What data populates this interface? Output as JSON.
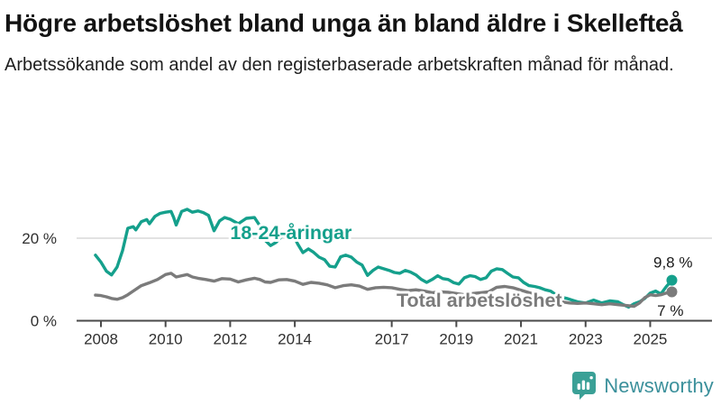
{
  "header": {
    "title": "Högre arbetslöshet bland unga än bland äldre i Skellefteå",
    "subtitle": "Arbetssökande som andel av den registerbaserade arbetskraften månad för månad."
  },
  "footer": {
    "brand": "Newsworthy",
    "brand_color": "#3b909b",
    "icon_color": "#3aa096"
  },
  "chart_data": {
    "type": "line",
    "title": "Högre arbetslöshet bland unga än bland äldre i Skellefteå",
    "subtitle": "Arbetssökande som andel av den registerbaserade arbetskraften månad för månad.",
    "unit": "%",
    "grid": "horizontal-only",
    "xlim": [
      2007.6,
      2026.3
    ],
    "ylim": [
      0,
      30
    ],
    "x_ticks": [
      {
        "year": 2008,
        "label": "2008"
      },
      {
        "year": 2010,
        "label": "2010"
      },
      {
        "year": 2012,
        "label": "2012"
      },
      {
        "year": 2014,
        "label": "2014"
      },
      {
        "year": 2017,
        "label": "2017"
      },
      {
        "year": 2019,
        "label": "2019"
      },
      {
        "year": 2021,
        "label": "2021"
      },
      {
        "year": 2023,
        "label": "2023"
      },
      {
        "year": 2025,
        "label": "2025"
      }
    ],
    "y_ticks": [
      {
        "value": 0,
        "label": "0 %"
      },
      {
        "value": 20,
        "label": "20 %"
      }
    ],
    "series": [
      {
        "name": "18-24-åringar",
        "color": "#15a08c",
        "end_label": "9,8 %",
        "end_value": 9.8,
        "label_pos": [
          2012.0,
          19.8
        ],
        "points": [
          [
            2007.83,
            15.9
          ],
          [
            2008.0,
            14.2
          ],
          [
            2008.17,
            12.0
          ],
          [
            2008.33,
            11.1
          ],
          [
            2008.5,
            13.0
          ],
          [
            2008.67,
            17.0
          ],
          [
            2008.83,
            22.4
          ],
          [
            2009.0,
            22.8
          ],
          [
            2009.08,
            22.0
          ],
          [
            2009.25,
            24.0
          ],
          [
            2009.42,
            24.5
          ],
          [
            2009.5,
            23.5
          ],
          [
            2009.67,
            25.3
          ],
          [
            2009.83,
            26.0
          ],
          [
            2010.0,
            26.3
          ],
          [
            2010.17,
            26.5
          ],
          [
            2010.25,
            25.0
          ],
          [
            2010.33,
            23.2
          ],
          [
            2010.5,
            26.5
          ],
          [
            2010.67,
            27.0
          ],
          [
            2010.83,
            26.3
          ],
          [
            2011.0,
            26.6
          ],
          [
            2011.17,
            26.2
          ],
          [
            2011.33,
            25.5
          ],
          [
            2011.5,
            21.8
          ],
          [
            2011.67,
            24.2
          ],
          [
            2011.83,
            25.0
          ],
          [
            2012.0,
            24.6
          ],
          [
            2012.25,
            23.5
          ],
          [
            2012.5,
            24.8
          ],
          [
            2012.75,
            25.0
          ],
          [
            2012.92,
            23.0
          ],
          [
            2013.08,
            19.5
          ],
          [
            2013.25,
            18.2
          ],
          [
            2013.42,
            19.0
          ],
          [
            2013.58,
            20.3
          ],
          [
            2013.75,
            21.3
          ],
          [
            2013.92,
            21.5
          ],
          [
            2014.08,
            18.7
          ],
          [
            2014.25,
            16.5
          ],
          [
            2014.42,
            17.4
          ],
          [
            2014.58,
            16.6
          ],
          [
            2014.75,
            15.4
          ],
          [
            2014.92,
            14.8
          ],
          [
            2015.08,
            13.2
          ],
          [
            2015.25,
            13.0
          ],
          [
            2015.42,
            15.5
          ],
          [
            2015.58,
            15.9
          ],
          [
            2015.75,
            15.4
          ],
          [
            2015.92,
            14.2
          ],
          [
            2016.08,
            13.5
          ],
          [
            2016.25,
            11.0
          ],
          [
            2016.42,
            12.2
          ],
          [
            2016.58,
            13.0
          ],
          [
            2016.75,
            12.6
          ],
          [
            2016.92,
            12.2
          ],
          [
            2017.08,
            11.7
          ],
          [
            2017.25,
            11.5
          ],
          [
            2017.42,
            12.2
          ],
          [
            2017.58,
            11.8
          ],
          [
            2017.75,
            11.1
          ],
          [
            2017.92,
            10.0
          ],
          [
            2018.08,
            9.3
          ],
          [
            2018.25,
            10.0
          ],
          [
            2018.42,
            10.9
          ],
          [
            2018.58,
            10.2
          ],
          [
            2018.75,
            10.0
          ],
          [
            2018.92,
            9.2
          ],
          [
            2019.08,
            8.9
          ],
          [
            2019.25,
            10.4
          ],
          [
            2019.42,
            10.9
          ],
          [
            2019.58,
            10.7
          ],
          [
            2019.75,
            10.0
          ],
          [
            2019.92,
            10.4
          ],
          [
            2020.08,
            12.0
          ],
          [
            2020.25,
            12.6
          ],
          [
            2020.42,
            12.4
          ],
          [
            2020.58,
            11.5
          ],
          [
            2020.75,
            10.6
          ],
          [
            2020.92,
            10.4
          ],
          [
            2021.08,
            9.3
          ],
          [
            2021.25,
            8.5
          ],
          [
            2021.42,
            8.3
          ],
          [
            2021.58,
            8.0
          ],
          [
            2021.75,
            7.5
          ],
          [
            2021.92,
            7.2
          ],
          [
            2022.08,
            6.3
          ],
          [
            2022.25,
            5.7
          ],
          [
            2022.42,
            5.4
          ],
          [
            2022.58,
            5.0
          ],
          [
            2022.75,
            4.6
          ],
          [
            2022.92,
            4.4
          ],
          [
            2023.0,
            4.3
          ],
          [
            2023.25,
            5.0
          ],
          [
            2023.5,
            4.3
          ],
          [
            2023.75,
            4.8
          ],
          [
            2024.0,
            4.6
          ],
          [
            2024.17,
            3.9
          ],
          [
            2024.33,
            3.3
          ],
          [
            2024.5,
            4.1
          ],
          [
            2024.67,
            4.6
          ],
          [
            2024.83,
            5.4
          ],
          [
            2025.0,
            6.7
          ],
          [
            2025.17,
            7.2
          ],
          [
            2025.33,
            6.5
          ],
          [
            2025.5,
            8.3
          ],
          [
            2025.67,
            9.8
          ]
        ]
      },
      {
        "name": "Total arbetslöshet",
        "color": "#7b7b7b",
        "end_label": "7 %",
        "end_value": 7.0,
        "label_pos": [
          2017.15,
          3.4
        ],
        "points": [
          [
            2007.83,
            6.2
          ],
          [
            2008.0,
            6.1
          ],
          [
            2008.17,
            5.8
          ],
          [
            2008.33,
            5.4
          ],
          [
            2008.5,
            5.2
          ],
          [
            2008.67,
            5.6
          ],
          [
            2008.83,
            6.3
          ],
          [
            2009.0,
            7.2
          ],
          [
            2009.25,
            8.5
          ],
          [
            2009.5,
            9.2
          ],
          [
            2009.75,
            10.0
          ],
          [
            2010.0,
            11.2
          ],
          [
            2010.17,
            11.5
          ],
          [
            2010.33,
            10.6
          ],
          [
            2010.5,
            10.9
          ],
          [
            2010.67,
            11.2
          ],
          [
            2010.83,
            10.6
          ],
          [
            2011.0,
            10.3
          ],
          [
            2011.25,
            10.0
          ],
          [
            2011.5,
            9.6
          ],
          [
            2011.75,
            10.2
          ],
          [
            2012.0,
            10.1
          ],
          [
            2012.25,
            9.4
          ],
          [
            2012.5,
            9.9
          ],
          [
            2012.75,
            10.3
          ],
          [
            2012.92,
            10.0
          ],
          [
            2013.08,
            9.4
          ],
          [
            2013.25,
            9.3
          ],
          [
            2013.5,
            9.9
          ],
          [
            2013.75,
            10.0
          ],
          [
            2014.0,
            9.6
          ],
          [
            2014.25,
            8.8
          ],
          [
            2014.5,
            9.3
          ],
          [
            2014.75,
            9.1
          ],
          [
            2015.0,
            8.7
          ],
          [
            2015.25,
            8.0
          ],
          [
            2015.5,
            8.5
          ],
          [
            2015.75,
            8.7
          ],
          [
            2016.0,
            8.4
          ],
          [
            2016.25,
            7.6
          ],
          [
            2016.5,
            8.0
          ],
          [
            2016.75,
            8.1
          ],
          [
            2017.0,
            8.0
          ],
          [
            2017.25,
            7.6
          ],
          [
            2017.5,
            7.3
          ],
          [
            2017.75,
            7.5
          ],
          [
            2018.0,
            7.2
          ],
          [
            2018.25,
            6.8
          ],
          [
            2018.5,
            7.0
          ],
          [
            2018.75,
            6.9
          ],
          [
            2019.0,
            6.6
          ],
          [
            2019.25,
            6.3
          ],
          [
            2019.5,
            6.6
          ],
          [
            2019.75,
            6.8
          ],
          [
            2020.0,
            7.0
          ],
          [
            2020.25,
            8.1
          ],
          [
            2020.5,
            8.3
          ],
          [
            2020.75,
            8.0
          ],
          [
            2021.0,
            7.4
          ],
          [
            2021.25,
            6.8
          ],
          [
            2021.5,
            6.2
          ],
          [
            2021.75,
            5.5
          ],
          [
            2022.0,
            5.0
          ],
          [
            2022.25,
            4.6
          ],
          [
            2022.5,
            4.3
          ],
          [
            2022.75,
            4.2
          ],
          [
            2023.0,
            4.3
          ],
          [
            2023.25,
            4.1
          ],
          [
            2023.5,
            3.9
          ],
          [
            2023.75,
            4.1
          ],
          [
            2024.0,
            3.9
          ],
          [
            2024.25,
            3.7
          ],
          [
            2024.5,
            3.5
          ],
          [
            2024.67,
            4.3
          ],
          [
            2024.83,
            5.6
          ],
          [
            2025.0,
            6.3
          ],
          [
            2025.17,
            6.1
          ],
          [
            2025.33,
            6.3
          ],
          [
            2025.5,
            6.7
          ],
          [
            2025.67,
            7.0
          ]
        ]
      }
    ]
  }
}
